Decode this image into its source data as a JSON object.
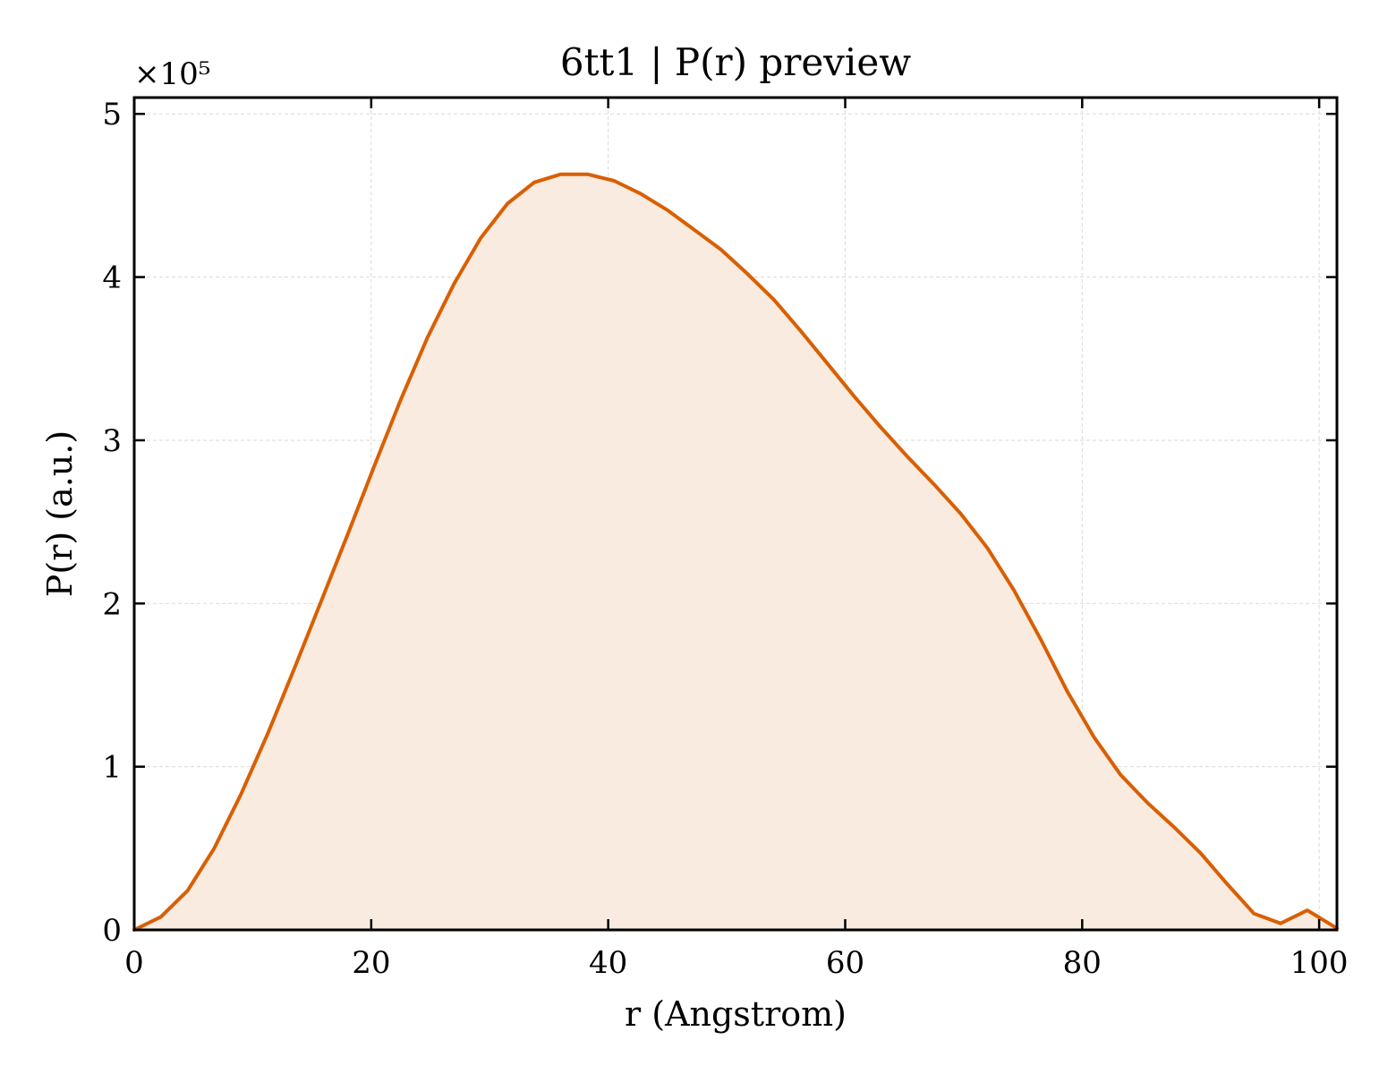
{
  "chart_data": {
    "type": "area",
    "title": "6tt1 | P(r) preview",
    "xlabel": "r (Angstrom)",
    "ylabel": "P(r) (a.u.)",
    "y_multiplier_label": "×10⁵",
    "xlim": [
      0,
      101.5
    ],
    "ylim": [
      0,
      5.1
    ],
    "x_ticks": [
      0,
      20,
      40,
      60,
      80,
      100
    ],
    "y_ticks": [
      0,
      1,
      2,
      3,
      4,
      5
    ],
    "grid": true,
    "colors": {
      "line": "#d95f02",
      "fill": "#f9ebe0"
    },
    "series": [
      {
        "x": [
          0,
          2.25,
          4.5,
          6.75,
          9.0,
          11.25,
          13.5,
          15.75,
          18.0,
          20.25,
          22.5,
          24.75,
          27.0,
          29.25,
          31.5,
          33.75,
          36.0,
          38.25,
          40.5,
          42.75,
          45.0,
          47.25,
          49.5,
          51.75,
          54.0,
          56.25,
          58.5,
          60.75,
          63.0,
          65.25,
          67.5,
          69.75,
          72.0,
          74.25,
          76.5,
          78.75,
          81.0,
          83.25,
          85.5,
          87.75,
          90.0,
          92.25,
          94.5,
          96.75,
          99.0,
          101.5
        ],
        "y": [
          0.0,
          0.08,
          0.24,
          0.5,
          0.83,
          1.2,
          1.6,
          2.01,
          2.42,
          2.84,
          3.25,
          3.63,
          3.96,
          4.24,
          4.45,
          4.58,
          4.63,
          4.63,
          4.59,
          4.51,
          4.41,
          4.29,
          4.17,
          4.02,
          3.86,
          3.67,
          3.47,
          3.27,
          3.08,
          2.9,
          2.73,
          2.55,
          2.34,
          2.08,
          1.78,
          1.46,
          1.18,
          0.95,
          0.78,
          0.63,
          0.47,
          0.28,
          0.1,
          0.04,
          0.12,
          0.01
        ]
      }
    ]
  }
}
